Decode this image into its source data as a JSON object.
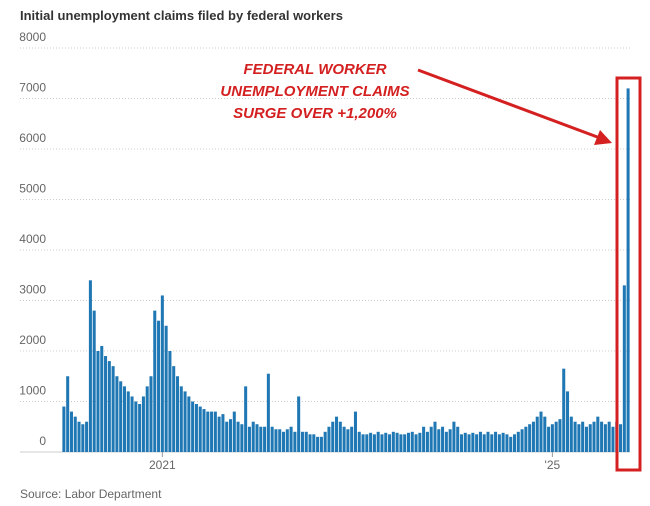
{
  "chart_data": {
    "type": "bar",
    "title": "Initial unemployment claims filed by federal workers",
    "source": "Source: Labor Department",
    "annotation": [
      "FEDERAL WORKER",
      "UNEMPLOYMENT CLAIMS",
      "SURGE OVER +1,200%"
    ],
    "color": "#1f77b4",
    "categories": [
      null,
      null,
      null,
      null,
      null,
      null,
      null,
      null,
      null,
      null,
      null,
      null,
      null,
      null,
      null,
      null,
      null,
      null,
      null,
      null,
      null,
      null,
      null,
      null,
      null,
      null,
      "2021",
      null,
      null,
      null,
      null,
      null,
      null,
      null,
      null,
      null,
      null,
      null,
      null,
      null,
      null,
      null,
      null,
      null,
      null,
      null,
      null,
      null,
      null,
      null,
      null,
      null,
      null,
      null,
      null,
      null,
      null,
      null,
      null,
      null,
      null,
      null,
      null,
      null,
      null,
      null,
      null,
      null,
      null,
      null,
      null,
      null,
      null,
      null,
      null,
      null,
      null,
      null,
      null,
      null,
      null,
      null,
      null,
      null,
      null,
      null,
      null,
      null,
      null,
      null,
      null,
      null,
      null,
      null,
      null,
      null,
      null,
      null,
      null,
      null,
      null,
      null,
      null,
      null,
      null,
      null,
      null,
      null,
      null,
      null,
      null,
      null,
      null,
      null,
      null,
      null,
      null,
      null,
      null,
      null,
      null,
      null,
      null,
      null,
      null,
      null,
      null,
      null,
      null,
      "'25",
      null,
      null,
      null,
      null,
      null,
      null,
      null,
      null,
      null,
      null,
      null,
      null,
      null,
      null,
      null,
      null,
      null,
      null,
      null,
      null
    ],
    "values": [
      900,
      1500,
      800,
      700,
      600,
      550,
      600,
      3400,
      2800,
      2000,
      2100,
      1900,
      1800,
      1700,
      1500,
      1400,
      1300,
      1200,
      1100,
      1000,
      950,
      1100,
      1300,
      1500,
      2800,
      2600,
      3100,
      2500,
      2000,
      1700,
      1500,
      1300,
      1200,
      1100,
      1000,
      950,
      900,
      850,
      800,
      800,
      800,
      700,
      750,
      600,
      650,
      800,
      600,
      550,
      1300,
      500,
      600,
      550,
      500,
      500,
      1550,
      500,
      450,
      450,
      400,
      450,
      500,
      400,
      1100,
      400,
      400,
      350,
      350,
      300,
      300,
      400,
      500,
      600,
      700,
      600,
      500,
      450,
      500,
      800,
      400,
      350,
      350,
      380,
      350,
      400,
      350,
      380,
      350,
      400,
      380,
      350,
      350,
      380,
      400,
      350,
      380,
      500,
      400,
      500,
      600,
      450,
      500,
      400,
      450,
      600,
      500,
      350,
      380,
      350,
      380,
      350,
      400,
      350,
      400,
      350,
      400,
      350,
      380,
      350,
      300,
      350,
      400,
      450,
      500,
      550,
      600,
      700,
      800,
      700,
      500,
      550,
      600,
      650,
      1650,
      1200,
      700,
      600,
      550,
      600,
      500,
      550,
      600,
      700,
      600,
      550,
      600,
      500,
      600,
      550,
      3300,
      7200
    ],
    "ylim": [
      0,
      8000
    ],
    "yticks": [
      0,
      1000,
      2000,
      3000,
      4000,
      5000,
      6000,
      7000,
      8000
    ],
    "grid": true
  }
}
